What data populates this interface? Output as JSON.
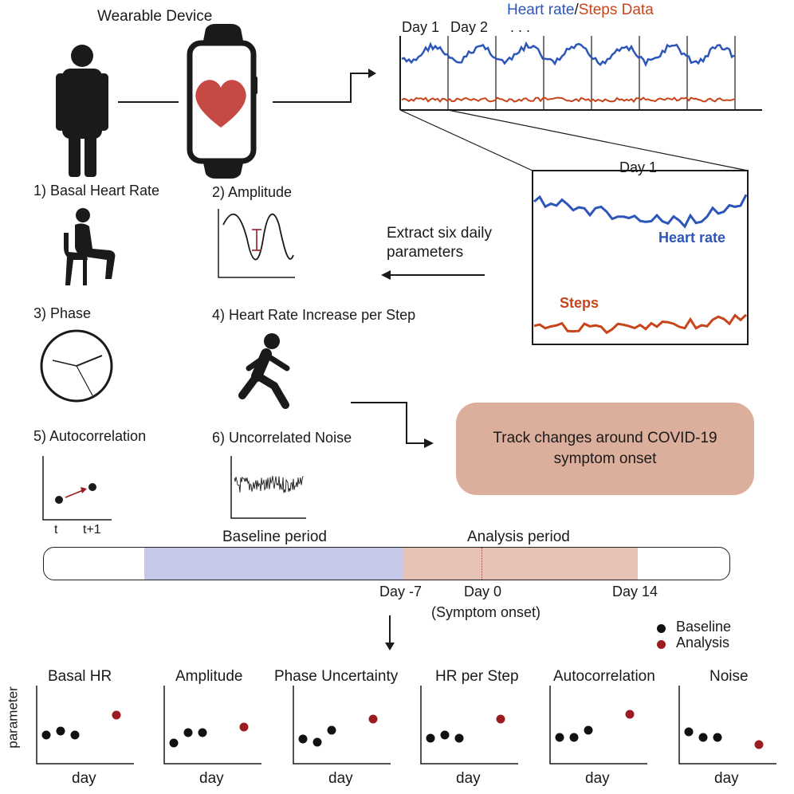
{
  "colors": {
    "heart_rate": "#2c56b8",
    "steps": "#c8441a",
    "track_box": "#dcaf9c",
    "baseline_band": "#c4c9ea",
    "analysis_band": "#e6c3b6",
    "baseline_dot": "#111111",
    "analysis_dot": "#9b1c20"
  },
  "top": {
    "device_title": "Wearable Device",
    "data_title_hr": "Heart rate",
    "data_title_sep": "/",
    "data_title_steps": "Steps Data",
    "day1": "Day 1",
    "day2": "Day 2",
    "ellipsis": ". . .",
    "zoom_day": "Day 1",
    "zoom_hr_label": "Heart rate",
    "zoom_steps_label": "Steps",
    "icons": [
      "person-icon",
      "smartwatch-icon",
      "heart-icon"
    ]
  },
  "extract_text_line1": "Extract six daily",
  "extract_text_line2": "parameters",
  "params": {
    "p1": "1) Basal Heart Rate",
    "p2": "2) Amplitude",
    "p3": "3) Phase",
    "p4": "4) Heart Rate Increase per Step",
    "p5": "5) Autocorrelation",
    "p6": "6) Uncorrelated Noise",
    "autocorr_t": "t",
    "autocorr_t1": "t+1",
    "icons": [
      "seated-person-icon",
      "sine-wave-icon",
      "clock-icon",
      "walking-person-icon",
      "autocorrelation-icon",
      "noise-icon"
    ]
  },
  "track_line1": "Track changes around COVID-19",
  "track_line2": "symptom onset",
  "timeline": {
    "baseline_label": "Baseline period",
    "analysis_label": "Analysis period",
    "day_m7": "Day -7",
    "day_0": "Day 0",
    "onset": "(Symptom onset)",
    "day_14": "Day 14"
  },
  "legend": {
    "baseline": "Baseline",
    "analysis": "Analysis"
  },
  "panels": {
    "ylabel": "parameter",
    "xlabel": "day",
    "titles": [
      "Basal HR",
      "Amplitude",
      "Phase Uncertainty",
      "HR per Step",
      "Autocorrelation",
      "Noise"
    ]
  }
}
